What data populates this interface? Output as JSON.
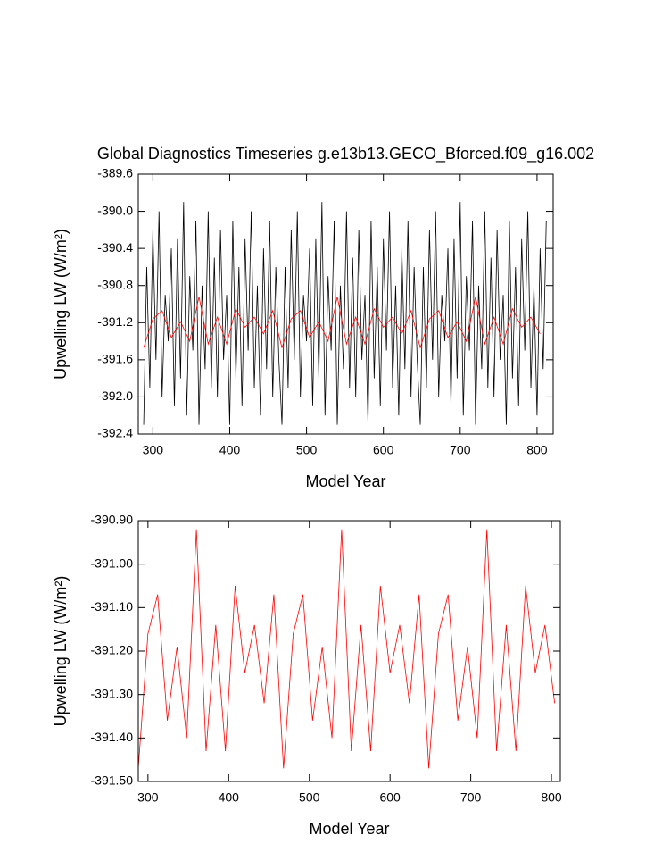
{
  "chart_data": [
    {
      "type": "line",
      "title": "Global Diagnostics Timeseries g.e13b13.GECO_Bforced.f09_g16.002",
      "xlabel": "Model Year",
      "ylabel": "Upwelling LW (W/m²)",
      "xlim": [
        281,
        821
      ],
      "ylim": [
        -392.4,
        -389.6
      ],
      "xticks": [
        300,
        400,
        500,
        600,
        700,
        800
      ],
      "yticks": [
        {
          "value": -389.6,
          "label": "-389.6"
        },
        {
          "value": -390.0,
          "label": "-390.0"
        },
        {
          "value": -390.4,
          "label": "-390.4"
        },
        {
          "value": -390.8,
          "label": "-390.8"
        },
        {
          "value": -391.2,
          "label": "-391.2"
        },
        {
          "value": -391.6,
          "label": "-391.6"
        },
        {
          "value": -392.0,
          "label": "-392.0"
        },
        {
          "value": -392.4,
          "label": "-392.4"
        }
      ],
      "series": [
        {
          "color": "#000000",
          "x": [
            288,
            292,
            296,
            300,
            304,
            308,
            312,
            316,
            320,
            324,
            328,
            332,
            336,
            340,
            344,
            348,
            352,
            356,
            360,
            364,
            368,
            372,
            376,
            380,
            384,
            388,
            392,
            396,
            400,
            404,
            408,
            412,
            416,
            420,
            424,
            428,
            432,
            436,
            440,
            444,
            448,
            452,
            456,
            460,
            464,
            468,
            472,
            476,
            480,
            484,
            488,
            492,
            496,
            500,
            504,
            508,
            512,
            516,
            520,
            524,
            528,
            532,
            536,
            540,
            544,
            548,
            552,
            556,
            560,
            564,
            568,
            572,
            576,
            580,
            584,
            588,
            592,
            596,
            600,
            604,
            608,
            612,
            616,
            620,
            624,
            628,
            632,
            636,
            640,
            644,
            648,
            652,
            656,
            660,
            664,
            668,
            672,
            676,
            680,
            684,
            688,
            692,
            696,
            700,
            704,
            708,
            712,
            716,
            720,
            724,
            728,
            732,
            736,
            740,
            744,
            748,
            752,
            756,
            760,
            764,
            768,
            772,
            776,
            780,
            784,
            788,
            792,
            796,
            800,
            804,
            808,
            812
          ],
          "values": [
            -392.3,
            -390.6,
            -391.9,
            -390.2,
            -391.6,
            -390.0,
            -392.0,
            -390.9,
            -391.4,
            -390.4,
            -392.1,
            -390.3,
            -391.8,
            -389.9,
            -392.2,
            -390.7,
            -391.5,
            -390.1,
            -392.3,
            -390.8,
            -391.7,
            -390.0,
            -391.9,
            -390.5,
            -392.0,
            -390.2,
            -391.6,
            -390.9,
            -392.3,
            -390.1,
            -391.8,
            -390.6,
            -392.1,
            -390.3,
            -391.5,
            -390.0,
            -391.9,
            -390.8,
            -392.2,
            -390.4,
            -391.7,
            -390.1,
            -392.0,
            -390.6,
            -391.6,
            -392.3,
            -390.6,
            -391.9,
            -390.2,
            -391.6,
            -390.0,
            -392.0,
            -390.9,
            -391.4,
            -390.4,
            -392.1,
            -390.3,
            -391.8,
            -389.9,
            -392.2,
            -390.7,
            -391.5,
            -390.1,
            -392.3,
            -390.8,
            -391.7,
            -390.0,
            -391.9,
            -390.5,
            -392.0,
            -390.2,
            -391.6,
            -390.9,
            -392.3,
            -390.1,
            -391.8,
            -390.6,
            -392.1,
            -390.3,
            -391.5,
            -390.0,
            -391.9,
            -390.8,
            -392.2,
            -390.4,
            -391.7,
            -390.1,
            -392.0,
            -390.6,
            -391.6,
            -392.3,
            -390.6,
            -391.9,
            -390.2,
            -391.6,
            -390.0,
            -392.0,
            -390.9,
            -391.4,
            -390.4,
            -392.1,
            -390.3,
            -391.8,
            -389.9,
            -392.2,
            -390.7,
            -391.5,
            -390.1,
            -392.3,
            -390.8,
            -391.7,
            -390.0,
            -391.9,
            -390.5,
            -392.0,
            -390.2,
            -391.6,
            -390.9,
            -392.3,
            -390.1,
            -391.8,
            -390.6,
            -392.1,
            -390.3,
            -391.5,
            -390.0,
            -391.9,
            -390.8,
            -392.2,
            -390.4,
            -391.7,
            -390.1
          ]
        },
        {
          "color": "#ff0000",
          "x": [
            288,
            300,
            312,
            324,
            336,
            348,
            360,
            372,
            384,
            396,
            408,
            420,
            432,
            444,
            456,
            468,
            480,
            492,
            504,
            516,
            528,
            540,
            552,
            564,
            576,
            588,
            600,
            612,
            624,
            636,
            648,
            660,
            672,
            684,
            696,
            708,
            720,
            732,
            744,
            756,
            768,
            780,
            792,
            804
          ],
          "values": [
            -391.47,
            -391.16,
            -391.07,
            -391.36,
            -391.19,
            -391.4,
            -390.92,
            -391.43,
            -391.14,
            -391.43,
            -391.05,
            -391.25,
            -391.14,
            -391.32,
            -391.07,
            -391.47,
            -391.16,
            -391.07,
            -391.36,
            -391.19,
            -391.4,
            -390.92,
            -391.43,
            -391.14,
            -391.43,
            -391.05,
            -391.25,
            -391.14,
            -391.32,
            -391.07,
            -391.47,
            -391.16,
            -391.07,
            -391.36,
            -391.19,
            -391.4,
            -390.92,
            -391.43,
            -391.14,
            -391.43,
            -391.05,
            -391.25,
            -391.14,
            -391.32
          ]
        }
      ]
    },
    {
      "type": "line",
      "xlabel": "Model Year",
      "ylabel": "Upwelling LW (W/m²)",
      "xlim": [
        288,
        811
      ],
      "ylim": [
        -391.5,
        -390.9
      ],
      "xticks": [
        300,
        400,
        500,
        600,
        700,
        800
      ],
      "yticks": [
        {
          "value": -390.9,
          "label": "-390.90"
        },
        {
          "value": -391.0,
          "label": "-391.00"
        },
        {
          "value": -391.1,
          "label": "-391.10"
        },
        {
          "value": -391.2,
          "label": "-391.20"
        },
        {
          "value": -391.3,
          "label": "-391.30"
        },
        {
          "value": -391.4,
          "label": "-391.40"
        },
        {
          "value": -391.5,
          "label": "-391.50"
        }
      ],
      "series": [
        {
          "color": "#ff0000",
          "x": [
            288,
            300,
            312,
            324,
            336,
            348,
            360,
            372,
            384,
            396,
            408,
            420,
            432,
            444,
            456,
            468,
            480,
            492,
            504,
            516,
            528,
            540,
            552,
            564,
            576,
            588,
            600,
            612,
            624,
            636,
            648,
            660,
            672,
            684,
            696,
            708,
            720,
            732,
            744,
            756,
            768,
            780,
            792,
            804
          ],
          "values": [
            -391.47,
            -391.16,
            -391.07,
            -391.36,
            -391.19,
            -391.4,
            -390.92,
            -391.43,
            -391.14,
            -391.43,
            -391.05,
            -391.25,
            -391.14,
            -391.32,
            -391.07,
            -391.47,
            -391.16,
            -391.07,
            -391.36,
            -391.19,
            -391.4,
            -390.92,
            -391.43,
            -391.14,
            -391.43,
            -391.05,
            -391.25,
            -391.14,
            -391.32,
            -391.07,
            -391.47,
            -391.16,
            -391.07,
            -391.36,
            -391.19,
            -391.4,
            -390.92,
            -391.43,
            -391.14,
            -391.43,
            -391.05,
            -391.25,
            -391.14,
            -391.32
          ]
        }
      ]
    }
  ]
}
